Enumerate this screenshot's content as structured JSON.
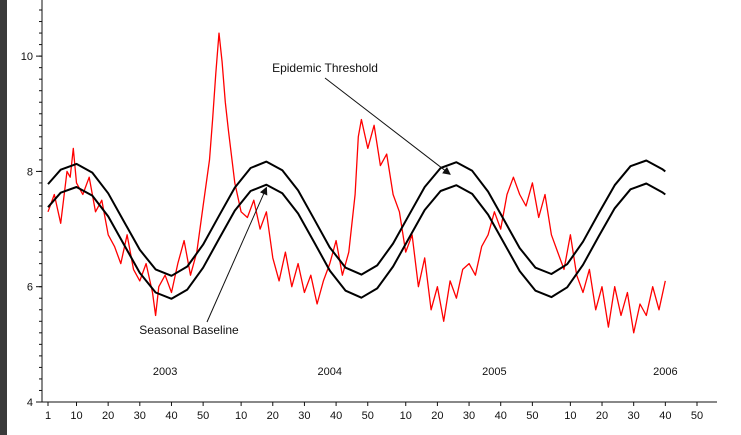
{
  "chart_data": {
    "type": "line",
    "title": "",
    "xlabel": "",
    "ylabel": "",
    "ylim": [
      4,
      10.8
    ],
    "grid": false,
    "legend": "none",
    "y_ticks": [
      4,
      6,
      8,
      10
    ],
    "x_ticks": [
      {
        "week": 1,
        "label": "1"
      },
      {
        "week": 10,
        "label": "10"
      },
      {
        "week": 20,
        "label": "20"
      },
      {
        "week": 30,
        "label": "30"
      },
      {
        "week": 40,
        "label": "40"
      },
      {
        "week": 50,
        "label": "50"
      },
      {
        "week": 62,
        "label": "10"
      },
      {
        "week": 72,
        "label": "20"
      },
      {
        "week": 82,
        "label": "30"
      },
      {
        "week": 92,
        "label": "40"
      },
      {
        "week": 102,
        "label": "50"
      },
      {
        "week": 114,
        "label": "10"
      },
      {
        "week": 124,
        "label": "20"
      },
      {
        "week": 134,
        "label": "30"
      },
      {
        "week": 144,
        "label": "40"
      },
      {
        "week": 154,
        "label": "50"
      },
      {
        "week": 166,
        "label": "10"
      },
      {
        "week": 176,
        "label": "20"
      },
      {
        "week": 186,
        "label": "30"
      },
      {
        "week": 196,
        "label": "40"
      },
      {
        "week": 206,
        "label": "50"
      }
    ],
    "year_labels": [
      {
        "week": 38,
        "label": "2003"
      },
      {
        "week": 90,
        "label": "2004"
      },
      {
        "week": 142,
        "label": "2005"
      },
      {
        "week": 196,
        "label": "2006"
      }
    ],
    "series": [
      {
        "color": "#ff0000",
        "x": [
          1,
          3,
          5,
          7,
          8,
          9,
          10,
          12,
          14,
          16,
          18,
          20,
          22,
          24,
          26,
          28,
          30,
          32,
          34,
          35,
          36,
          38,
          40,
          42,
          44,
          46,
          48,
          50,
          52,
          53,
          54,
          55,
          56,
          57,
          58,
          60,
          62,
          64,
          66,
          68,
          70,
          72,
          74,
          76,
          78,
          80,
          82,
          84,
          86,
          88,
          90,
          92,
          94,
          96,
          98,
          99,
          100,
          102,
          104,
          106,
          108,
          110,
          112,
          114,
          116,
          118,
          120,
          122,
          124,
          126,
          128,
          130,
          132,
          134,
          136,
          138,
          140,
          142,
          144,
          146,
          148,
          150,
          152,
          154,
          156,
          158,
          160,
          162,
          164,
          166,
          168,
          170,
          172,
          174,
          176,
          178,
          180,
          182,
          184,
          186,
          188,
          190,
          192,
          194,
          196
        ],
        "y": [
          7.3,
          7.6,
          7.1,
          8.0,
          7.9,
          8.4,
          7.8,
          7.6,
          7.9,
          7.3,
          7.5,
          6.9,
          6.7,
          6.4,
          6.9,
          6.3,
          6.1,
          6.4,
          5.9,
          5.5,
          6.0,
          6.2,
          5.9,
          6.4,
          6.8,
          6.2,
          6.6,
          7.4,
          8.2,
          8.9,
          9.7,
          10.4,
          9.9,
          9.2,
          8.7,
          7.8,
          7.3,
          7.2,
          7.5,
          7.0,
          7.3,
          6.5,
          6.1,
          6.6,
          6.0,
          6.4,
          5.9,
          6.2,
          5.7,
          6.1,
          6.4,
          6.8,
          6.2,
          6.6,
          7.6,
          8.6,
          8.9,
          8.4,
          8.8,
          8.1,
          8.3,
          7.6,
          7.3,
          6.6,
          6.9,
          6.0,
          6.5,
          5.6,
          6.0,
          5.4,
          6.1,
          5.8,
          6.3,
          6.4,
          6.2,
          6.7,
          6.9,
          7.3,
          7.0,
          7.6,
          7.9,
          7.6,
          7.4,
          7.8,
          7.2,
          7.6,
          6.9,
          6.6,
          6.3,
          6.9,
          6.2,
          5.9,
          6.3,
          5.6,
          6.0,
          5.3,
          6.0,
          5.5,
          5.9,
          5.2,
          5.7,
          5.5,
          6.0,
          5.6,
          6.1
        ]
      },
      {
        "name": "Epidemic Threshold",
        "color": "#000000",
        "x": [
          1,
          5,
          10,
          15,
          20,
          25,
          30,
          35,
          40,
          45,
          50,
          55,
          60,
          65,
          70,
          75,
          80,
          85,
          90,
          95,
          100,
          105,
          110,
          115,
          120,
          125,
          130,
          135,
          140,
          145,
          150,
          155,
          160,
          165,
          170,
          175,
          180,
          185,
          190,
          195,
          196
        ],
        "y": [
          7.78,
          8.03,
          8.13,
          7.98,
          7.62,
          7.13,
          6.64,
          6.3,
          6.19,
          6.35,
          6.73,
          7.23,
          7.72,
          8.06,
          8.17,
          8.02,
          7.67,
          7.18,
          6.68,
          6.33,
          6.21,
          6.37,
          6.75,
          7.24,
          7.73,
          8.06,
          8.16,
          8.01,
          7.65,
          7.16,
          6.67,
          6.33,
          6.22,
          6.39,
          6.78,
          7.28,
          7.76,
          8.09,
          8.19,
          8.04,
          8.0
        ]
      },
      {
        "name": "Seasonal Baseline",
        "color": "#000000",
        "x": [
          1,
          5,
          10,
          15,
          20,
          25,
          30,
          35,
          40,
          45,
          50,
          55,
          60,
          65,
          70,
          75,
          80,
          85,
          90,
          95,
          100,
          105,
          110,
          115,
          120,
          125,
          130,
          135,
          140,
          145,
          150,
          155,
          160,
          165,
          170,
          175,
          180,
          185,
          190,
          195,
          196
        ],
        "y": [
          7.38,
          7.63,
          7.73,
          7.58,
          7.22,
          6.73,
          6.24,
          5.9,
          5.79,
          5.95,
          6.33,
          6.83,
          7.32,
          7.66,
          7.77,
          7.62,
          7.27,
          6.78,
          6.28,
          5.93,
          5.81,
          5.97,
          6.35,
          6.84,
          7.33,
          7.66,
          7.76,
          7.61,
          7.25,
          6.76,
          6.27,
          5.93,
          5.82,
          5.99,
          6.38,
          6.88,
          7.36,
          7.69,
          7.79,
          7.64,
          7.6
        ]
      }
    ],
    "annotations": [
      {
        "text": "Epidemic Threshold",
        "points_to": {
          "x": 128,
          "y": 7.95
        }
      },
      {
        "text": "Seasonal Baseline",
        "points_to": {
          "x": 70,
          "y": 7.72
        }
      }
    ]
  }
}
